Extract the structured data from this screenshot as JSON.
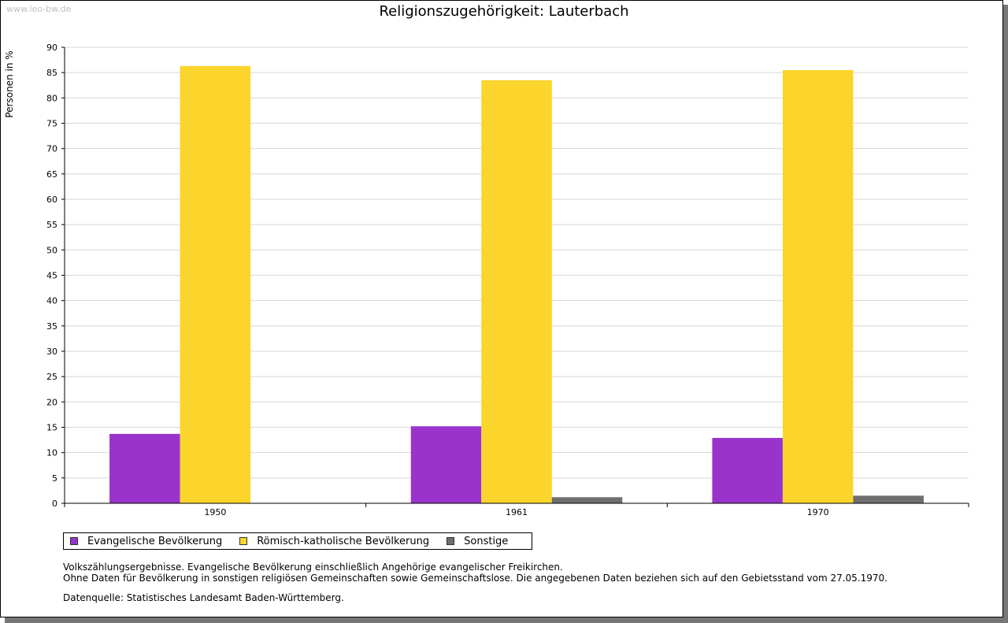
{
  "watermark": "www.leo-bw.de",
  "title": "Religionszugehörigkeit: Lauterbach",
  "chart_data": {
    "type": "bar",
    "title": "Religionszugehörigkeit: Lauterbach",
    "xlabel": "",
    "ylabel": "Personen in %",
    "categories": [
      "1950",
      "1961",
      "1970"
    ],
    "ylim": [
      0,
      90
    ],
    "ytick_step": 5,
    "grid": true,
    "legend_position": "bottom",
    "series": [
      {
        "name": "Evangelische Bevölkerung",
        "color": "#9933cc",
        "values": [
          13.7,
          15.2,
          12.9
        ]
      },
      {
        "name": "Römisch-katholische Bevölkerung",
        "color": "#fcd52c",
        "values": [
          86.3,
          83.5,
          85.5
        ]
      },
      {
        "name": "Sonstige",
        "color": "#6e6e6e",
        "values": [
          null,
          1.2,
          1.5
        ]
      }
    ]
  },
  "notes": {
    "line1": "Volkszählungsergebnisse. Evangelische Bevölkerung einschließlich Angehörige evangelischer Freikirchen.",
    "line2": "Ohne Daten für Bevölkerung in sonstigen religiösen Gemeinschaften sowie Gemeinschaftslose. Die angegebenen Daten beziehen sich auf den Gebietsstand vom 27.05.1970."
  },
  "source": "Datenquelle: Statistisches Landesamt Baden-Württemberg."
}
